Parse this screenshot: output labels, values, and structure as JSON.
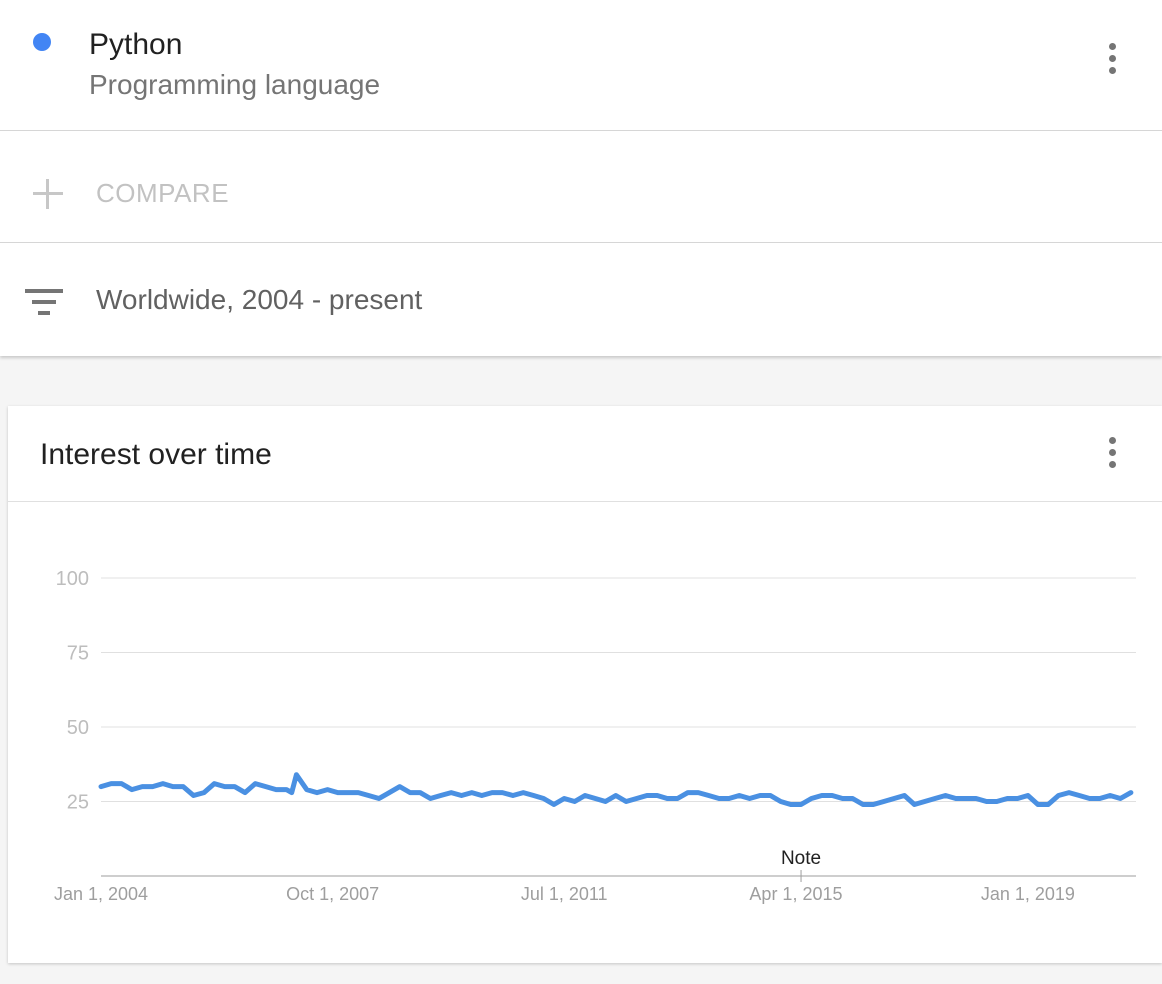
{
  "search_term": {
    "name": "Python",
    "type": "Programming language",
    "color": "#4285f4"
  },
  "compare": {
    "label": "COMPARE"
  },
  "filter": {
    "label": "Worldwide, 2004 - present"
  },
  "card": {
    "title": "Interest over time"
  },
  "chart_data": {
    "type": "line",
    "title": "",
    "xlabel": "",
    "ylabel": "",
    "ylim": [
      0,
      100
    ],
    "yticks": [
      25,
      50,
      75,
      100
    ],
    "xticks": [
      {
        "label": "Jan 1, 2004",
        "date": "2004-01-01"
      },
      {
        "label": "Oct 1, 2007",
        "date": "2007-10-01"
      },
      {
        "label": "Jul 1, 2011",
        "date": "2011-07-01"
      },
      {
        "label": "Apr 1, 2015",
        "date": "2015-04-01"
      },
      {
        "label": "Jan 1, 2019",
        "date": "2019-01-01"
      }
    ],
    "annotation": {
      "label": "Note",
      "date": "2015-05-01"
    },
    "grid": true,
    "series": [
      {
        "color": "#4a90e2",
        "points": [
          [
            "2004-01-01",
            30
          ],
          [
            "2004-03-01",
            31
          ],
          [
            "2004-05-01",
            31
          ],
          [
            "2004-07-01",
            29
          ],
          [
            "2004-09-01",
            30
          ],
          [
            "2004-11-01",
            30
          ],
          [
            "2005-01-01",
            31
          ],
          [
            "2005-03-01",
            30
          ],
          [
            "2005-05-01",
            30
          ],
          [
            "2005-07-01",
            27
          ],
          [
            "2005-09-01",
            28
          ],
          [
            "2005-11-01",
            31
          ],
          [
            "2006-01-01",
            30
          ],
          [
            "2006-03-01",
            30
          ],
          [
            "2006-05-01",
            28
          ],
          [
            "2006-07-01",
            31
          ],
          [
            "2006-09-01",
            30
          ],
          [
            "2006-11-01",
            29
          ],
          [
            "2007-01-01",
            29
          ],
          [
            "2007-02-01",
            28
          ],
          [
            "2007-03-01",
            34
          ],
          [
            "2007-05-01",
            29
          ],
          [
            "2007-07-01",
            28
          ],
          [
            "2007-09-01",
            29
          ],
          [
            "2007-11-01",
            28
          ],
          [
            "2008-01-01",
            28
          ],
          [
            "2008-03-01",
            28
          ],
          [
            "2008-05-01",
            27
          ],
          [
            "2008-07-01",
            26
          ],
          [
            "2008-09-01",
            28
          ],
          [
            "2008-11-01",
            30
          ],
          [
            "2009-01-01",
            28
          ],
          [
            "2009-03-01",
            28
          ],
          [
            "2009-05-01",
            26
          ],
          [
            "2009-07-01",
            27
          ],
          [
            "2009-09-01",
            28
          ],
          [
            "2009-11-01",
            27
          ],
          [
            "2010-01-01",
            28
          ],
          [
            "2010-03-01",
            27
          ],
          [
            "2010-05-01",
            28
          ],
          [
            "2010-07-01",
            28
          ],
          [
            "2010-09-01",
            27
          ],
          [
            "2010-11-01",
            28
          ],
          [
            "2011-01-01",
            27
          ],
          [
            "2011-03-01",
            26
          ],
          [
            "2011-05-01",
            24
          ],
          [
            "2011-07-01",
            26
          ],
          [
            "2011-09-01",
            25
          ],
          [
            "2011-11-01",
            27
          ],
          [
            "2012-01-01",
            26
          ],
          [
            "2012-03-01",
            25
          ],
          [
            "2012-05-01",
            27
          ],
          [
            "2012-07-01",
            25
          ],
          [
            "2012-09-01",
            26
          ],
          [
            "2012-11-01",
            27
          ],
          [
            "2013-01-01",
            27
          ],
          [
            "2013-03-01",
            26
          ],
          [
            "2013-05-01",
            26
          ],
          [
            "2013-07-01",
            28
          ],
          [
            "2013-09-01",
            28
          ],
          [
            "2013-11-01",
            27
          ],
          [
            "2014-01-01",
            26
          ],
          [
            "2014-03-01",
            26
          ],
          [
            "2014-05-01",
            27
          ],
          [
            "2014-07-01",
            26
          ],
          [
            "2014-09-01",
            27
          ],
          [
            "2014-11-01",
            27
          ],
          [
            "2015-01-01",
            25
          ],
          [
            "2015-03-01",
            24
          ],
          [
            "2015-05-01",
            24
          ],
          [
            "2015-07-01",
            26
          ],
          [
            "2015-09-01",
            27
          ],
          [
            "2015-11-01",
            27
          ],
          [
            "2016-01-01",
            26
          ],
          [
            "2016-03-01",
            26
          ],
          [
            "2016-05-01",
            24
          ],
          [
            "2016-07-01",
            24
          ],
          [
            "2016-09-01",
            25
          ],
          [
            "2016-11-01",
            26
          ],
          [
            "2017-01-01",
            27
          ],
          [
            "2017-03-01",
            24
          ],
          [
            "2017-05-01",
            25
          ],
          [
            "2017-07-01",
            26
          ],
          [
            "2017-09-01",
            27
          ],
          [
            "2017-11-01",
            26
          ],
          [
            "2018-01-01",
            26
          ],
          [
            "2018-03-01",
            26
          ],
          [
            "2018-05-01",
            25
          ],
          [
            "2018-07-01",
            25
          ],
          [
            "2018-09-01",
            26
          ],
          [
            "2018-11-01",
            26
          ],
          [
            "2019-01-01",
            27
          ],
          [
            "2019-03-01",
            24
          ],
          [
            "2019-05-01",
            24
          ],
          [
            "2019-07-01",
            27
          ],
          [
            "2019-09-01",
            28
          ],
          [
            "2019-11-01",
            27
          ],
          [
            "2020-01-01",
            26
          ],
          [
            "2020-03-01",
            26
          ],
          [
            "2020-05-01",
            27
          ],
          [
            "2020-07-01",
            26
          ],
          [
            "2020-09-01",
            28
          ]
        ]
      }
    ]
  }
}
